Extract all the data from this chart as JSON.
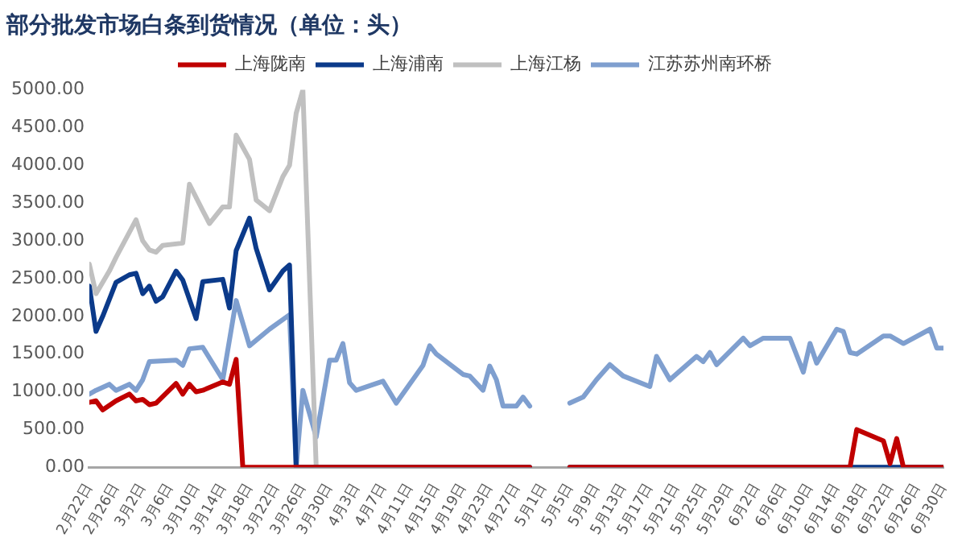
{
  "chart_data": {
    "type": "line",
    "title": "部分批发市场白条到货情况（单位：头）",
    "legend": "top",
    "marker": "none",
    "xlim": [
      "--02-22",
      "--06-30"
    ],
    "xticks": [
      {
        "value": "--02-22",
        "label": "2月22日"
      },
      {
        "value": "--02-26",
        "label": "2月26日"
      },
      {
        "value": "--03-02",
        "label": "3月2日"
      },
      {
        "value": "--03-06",
        "label": "3月6日"
      },
      {
        "value": "--03-10",
        "label": "3月10日"
      },
      {
        "value": "--03-14",
        "label": "3月14日"
      },
      {
        "value": "--03-18",
        "label": "3月18日"
      },
      {
        "value": "--03-22",
        "label": "3月22日"
      },
      {
        "value": "--03-26",
        "label": "3月26日"
      },
      {
        "value": "--03-30",
        "label": "3月30日"
      },
      {
        "value": "--04-03",
        "label": "4月3日"
      },
      {
        "value": "--04-07",
        "label": "4月7日"
      },
      {
        "value": "--04-11",
        "label": "4月11日"
      },
      {
        "value": "--04-15",
        "label": "4月15日"
      },
      {
        "value": "--04-19",
        "label": "4月19日"
      },
      {
        "value": "--04-23",
        "label": "4月23日"
      },
      {
        "value": "--04-27",
        "label": "4月27日"
      },
      {
        "value": "--05-01",
        "label": "5月1日"
      },
      {
        "value": "--05-05",
        "label": "5月5日"
      },
      {
        "value": "--05-09",
        "label": "5月9日"
      },
      {
        "value": "--05-13",
        "label": "5月13日"
      },
      {
        "value": "--05-17",
        "label": "5月17日"
      },
      {
        "value": "--05-21",
        "label": "5月21日"
      },
      {
        "value": "--05-25",
        "label": "5月25日"
      },
      {
        "value": "--05-29",
        "label": "5月29日"
      },
      {
        "value": "--06-02",
        "label": "6月2日"
      },
      {
        "value": "--06-06",
        "label": "6月6日"
      },
      {
        "value": "--06-10",
        "label": "6月10日"
      },
      {
        "value": "--06-14",
        "label": "6月14日"
      },
      {
        "value": "--06-18",
        "label": "6月18日"
      },
      {
        "value": "--06-22",
        "label": "6月22日"
      },
      {
        "value": "--06-26",
        "label": "6月26日"
      },
      {
        "value": "--06-30",
        "label": "6月30日"
      }
    ],
    "ylim": [
      0,
      5000
    ],
    "yticks": [
      {
        "value": 0,
        "label": "0.00"
      },
      {
        "value": 500,
        "label": "500.00"
      },
      {
        "value": 1000,
        "label": "1000.00"
      },
      {
        "value": 1500,
        "label": "1500.00"
      },
      {
        "value": 2000,
        "label": "2000.00"
      },
      {
        "value": 2500,
        "label": "2500.00"
      },
      {
        "value": 3000,
        "label": "3000.00"
      },
      {
        "value": 3500,
        "label": "3500.00"
      },
      {
        "value": 4000,
        "label": "4000.00"
      },
      {
        "value": 4500,
        "label": "4500.00"
      },
      {
        "value": 5000,
        "label": "5000.00"
      }
    ],
    "series": [
      {
        "name": "上海陇南",
        "color": "#c00000",
        "x": [
          "--02-22",
          "--02-23",
          "--02-24",
          "--02-26",
          "--02-28",
          "--03-01",
          "--03-02",
          "--03-03",
          "--03-04",
          "--03-07",
          "--03-08",
          "--03-09",
          "--03-10",
          "--03-11",
          "--03-14",
          "--03-15",
          "--03-16",
          "--03-17",
          "--04-29",
          "--05-02",
          "--05-05",
          "--06-16",
          "--06-17",
          "--06-21",
          "--06-22",
          "--06-23",
          "--06-24",
          "--06-30"
        ],
        "values": [
          860,
          880,
          760,
          880,
          970,
          880,
          900,
          830,
          850,
          1110,
          970,
          1100,
          1000,
          1020,
          1130,
          1100,
          1430,
          0,
          0,
          null,
          0,
          0,
          500,
          350,
          50,
          380,
          0,
          0
        ]
      },
      {
        "name": "上海浦南",
        "color": "#0b3a8a",
        "x": [
          "--02-22",
          "--02-23",
          "--02-24",
          "--02-26",
          "--02-28",
          "--03-01",
          "--03-02",
          "--03-03",
          "--03-04",
          "--03-05",
          "--03-07",
          "--03-08",
          "--03-10",
          "--03-11",
          "--03-14",
          "--03-15",
          "--03-16",
          "--03-18",
          "--03-19",
          "--03-21",
          "--03-23",
          "--03-24",
          "--03-25",
          "--04-29",
          "--05-02",
          "--05-05",
          "--06-30"
        ],
        "values": [
          2400,
          1800,
          2000,
          2450,
          2550,
          2570,
          2300,
          2400,
          2200,
          2260,
          2600,
          2480,
          1970,
          2460,
          2490,
          2110,
          2870,
          3300,
          2900,
          2350,
          2600,
          2680,
          0,
          0,
          null,
          0,
          0
        ]
      },
      {
        "name": "上海江杨",
        "color": "#c0c0c0",
        "x": [
          "--02-22",
          "--02-23",
          "--02-25",
          "--02-26",
          "--03-01",
          "--03-02",
          "--03-03",
          "--03-04",
          "--03-05",
          "--03-08",
          "--03-09",
          "--03-11",
          "--03-12",
          "--03-14",
          "--03-15",
          "--03-16",
          "--03-18",
          "--03-19",
          "--03-21",
          "--03-23",
          "--03-24",
          "--03-25",
          "--03-26",
          "--03-28",
          "--04-29",
          "--05-02",
          "--05-05",
          "--06-30"
        ],
        "values": [
          2690,
          2300,
          2600,
          2780,
          3280,
          3000,
          2880,
          2850,
          2940,
          2970,
          3750,
          3400,
          3230,
          3450,
          3450,
          4400,
          4080,
          3540,
          3400,
          3850,
          4000,
          4690,
          5000,
          0,
          0,
          null,
          0,
          0
        ]
      },
      {
        "name": "江苏苏州南环桥",
        "color": "#7f9fcf",
        "x": [
          "--02-22",
          "--02-23",
          "--02-25",
          "--02-26",
          "--02-28",
          "--03-01",
          "--03-02",
          "--03-03",
          "--03-07",
          "--03-08",
          "--03-09",
          "--03-11",
          "--03-14",
          "--03-16",
          "--03-18",
          "--03-21",
          "--03-24",
          "--03-25",
          "--03-26",
          "--03-28",
          "--03-30",
          "--03-31",
          "--04-01",
          "--04-02",
          "--04-03",
          "--04-07",
          "--04-09",
          "--04-13",
          "--04-14",
          "--04-15",
          "--04-19",
          "--04-20",
          "--04-22",
          "--04-23",
          "--04-24",
          "--04-25",
          "--04-27",
          "--04-28",
          "--04-29",
          "--05-02",
          "--05-05",
          "--05-07",
          "--05-09",
          "--05-11",
          "--05-13",
          "--05-17",
          "--05-18",
          "--05-20",
          "--05-24",
          "--05-25",
          "--05-26",
          "--05-27",
          "--05-31",
          "--06-01",
          "--06-03",
          "--06-07",
          "--06-09",
          "--06-10",
          "--06-11",
          "--06-14",
          "--06-15",
          "--06-16",
          "--06-17",
          "--06-21",
          "--06-22",
          "--06-24",
          "--06-28",
          "--06-29",
          "--06-30"
        ],
        "values": [
          970,
          1020,
          1100,
          1020,
          1100,
          1020,
          1160,
          1400,
          1420,
          1350,
          1570,
          1590,
          1160,
          2210,
          1610,
          1830,
          2020,
          0,
          1020,
          400,
          1420,
          1420,
          1640,
          1120,
          1020,
          1140,
          850,
          1350,
          1610,
          1500,
          1230,
          1210,
          1020,
          1340,
          1160,
          810,
          810,
          930,
          810,
          null,
          850,
          930,
          1160,
          1360,
          1210,
          1070,
          1470,
          1160,
          1470,
          1400,
          1520,
          1360,
          1710,
          1610,
          1710,
          1710,
          1260,
          1640,
          1380,
          1830,
          1800,
          1520,
          1500,
          1740,
          1740,
          1640,
          1830,
          1580,
          1580
        ]
      }
    ]
  }
}
